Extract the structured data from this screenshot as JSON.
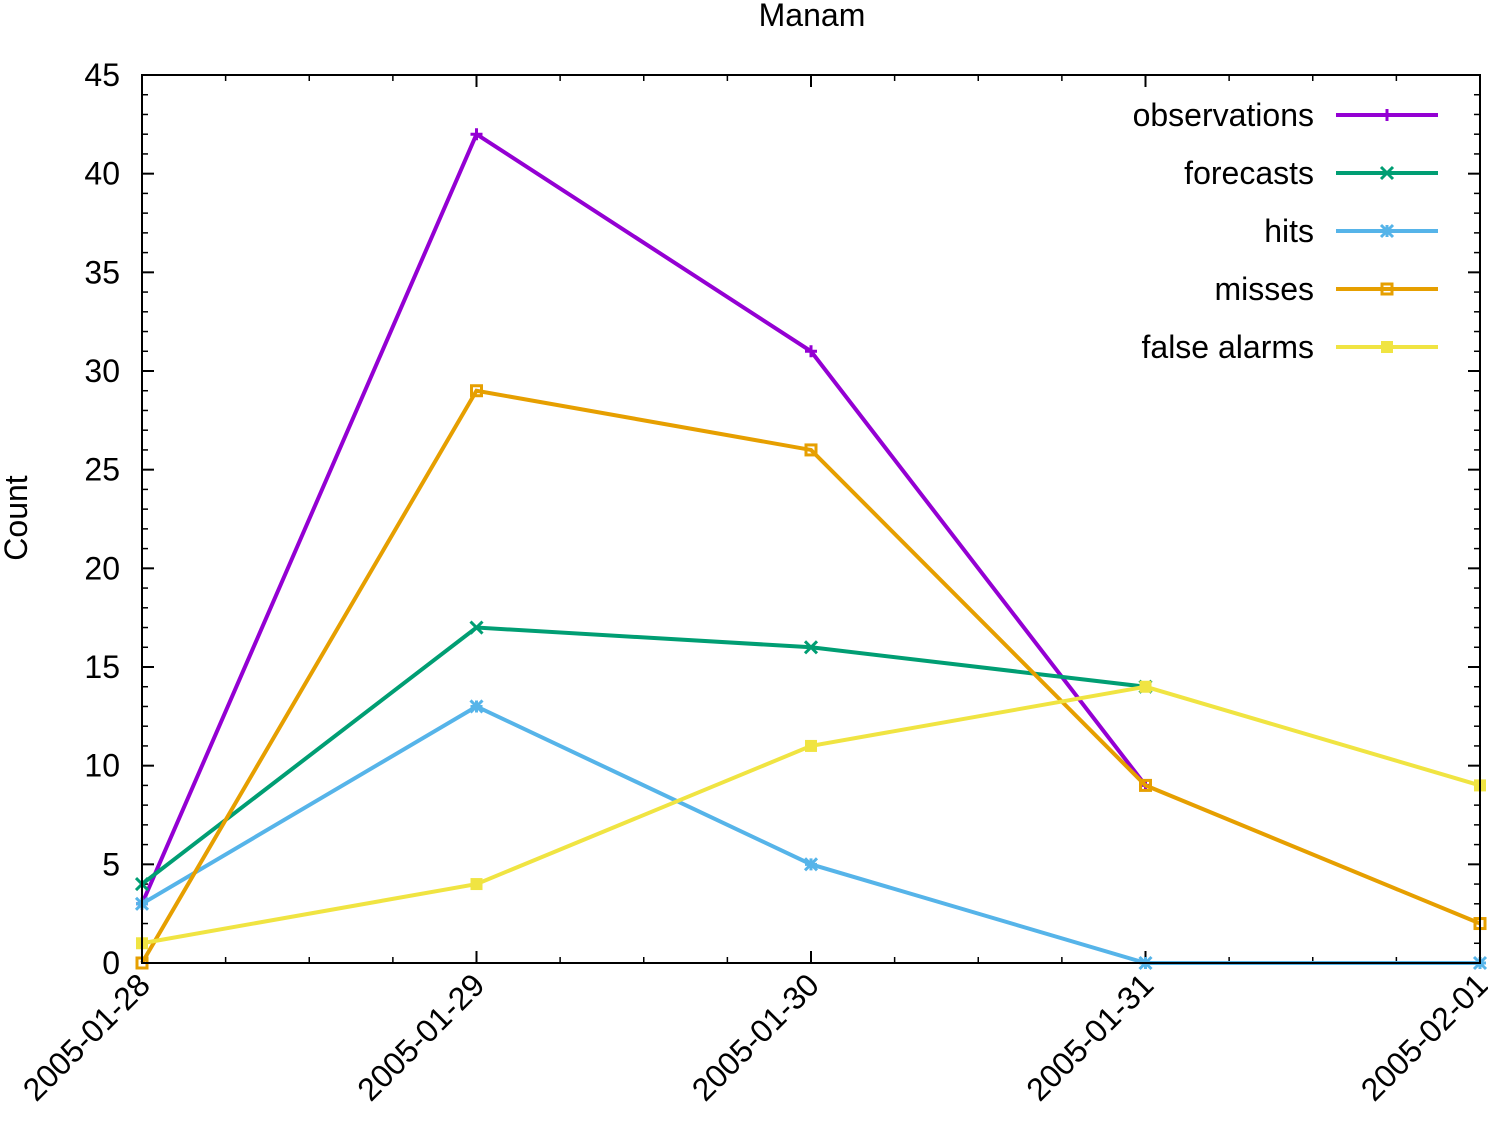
{
  "chart_data": {
    "type": "line",
    "title": "Manam",
    "xlabel": "",
    "ylabel": "Count",
    "x": [
      "2005-01-28",
      "2005-01-29",
      "2005-01-30",
      "2005-01-31",
      "2005-02-01"
    ],
    "ylim": [
      0,
      45
    ],
    "yticks": [
      0,
      5,
      10,
      15,
      20,
      25,
      30,
      35,
      40,
      45
    ],
    "grid": false,
    "legend_position": "top-right",
    "series": [
      {
        "name": "observations",
        "color": "#9400d3",
        "marker": "plus",
        "values": [
          3,
          42,
          31,
          9,
          null
        ]
      },
      {
        "name": "forecasts",
        "color": "#009e73",
        "marker": "cross",
        "values": [
          4,
          17,
          16,
          14,
          null
        ]
      },
      {
        "name": "hits",
        "color": "#56b4e9",
        "marker": "star",
        "values": [
          3,
          13,
          5,
          0,
          0
        ]
      },
      {
        "name": "misses",
        "color": "#e69f00",
        "marker": "square-open",
        "values": [
          0,
          29,
          26,
          9,
          2
        ]
      },
      {
        "name": "false alarms",
        "color": "#f0e442",
        "marker": "square-filled",
        "values": [
          1,
          4,
          11,
          14,
          9
        ]
      }
    ]
  }
}
